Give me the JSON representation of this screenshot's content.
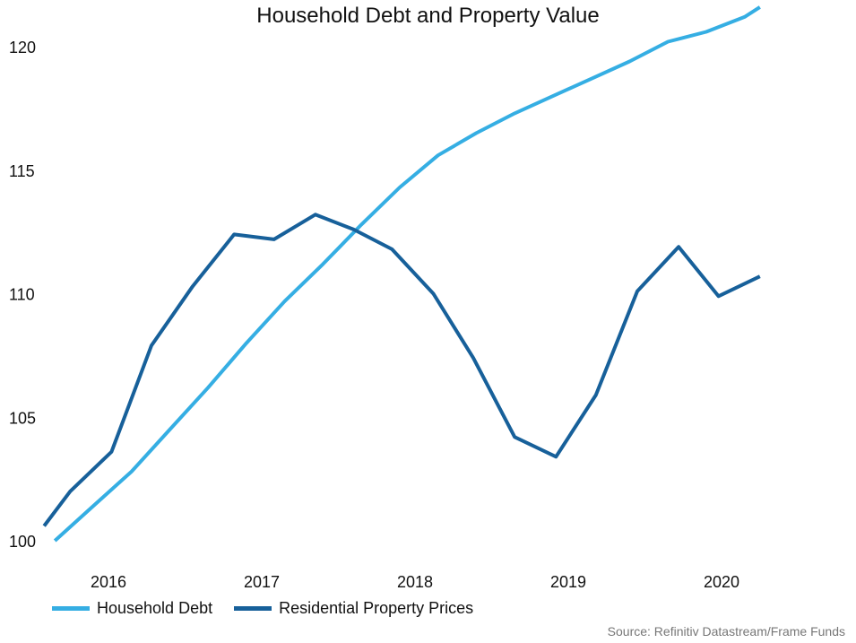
{
  "chart_data": {
    "type": "line",
    "title": "Household Debt and Property Value",
    "xlabel": "",
    "ylabel": "",
    "ylim": [
      100,
      120
    ],
    "yticks": [
      100,
      105,
      110,
      115,
      120
    ],
    "xlim": [
      2015.58,
      2020.5
    ],
    "xticks": [
      {
        "label": "2016",
        "value": 2016.0
      },
      {
        "label": "2017",
        "value": 2017.0
      },
      {
        "label": "2018",
        "value": 2018.0
      },
      {
        "label": "2019",
        "value": 2019.0
      },
      {
        "label": "2020",
        "value": 2020.0
      }
    ],
    "grid": false,
    "legend_position": "bottom-left",
    "series": [
      {
        "name": "Household Debt",
        "color": "#35aee3",
        "x": [
          2015.65,
          2015.9,
          2016.15,
          2016.4,
          2016.65,
          2016.9,
          2017.15,
          2017.4,
          2017.65,
          2017.9,
          2018.15,
          2018.4,
          2018.65,
          2018.9,
          2019.15,
          2019.4,
          2019.65,
          2019.9,
          2020.15,
          2020.25
        ],
        "values": [
          100.0,
          101.4,
          102.8,
          104.5,
          106.2,
          108.0,
          109.7,
          111.2,
          112.8,
          114.3,
          115.6,
          116.5,
          117.3,
          118.0,
          118.7,
          119.4,
          120.2,
          120.6,
          121.2,
          121.6
        ]
      },
      {
        "name": "Residential Property Prices",
        "color": "#17609a",
        "x": [
          2015.58,
          2015.75,
          2016.02,
          2016.28,
          2016.55,
          2016.82,
          2017.08,
          2017.35,
          2017.6,
          2017.85,
          2018.12,
          2018.38,
          2018.65,
          2018.92,
          2019.18,
          2019.45,
          2019.72,
          2019.98,
          2020.25
        ],
        "values": [
          100.6,
          102.0,
          103.6,
          107.9,
          110.3,
          112.4,
          112.2,
          113.2,
          112.6,
          111.8,
          110.0,
          107.4,
          104.2,
          103.4,
          105.9,
          110.1,
          111.9,
          109.9,
          110.7
        ]
      }
    ]
  },
  "source": "Source: Refinitiv Datastream/Frame Funds"
}
